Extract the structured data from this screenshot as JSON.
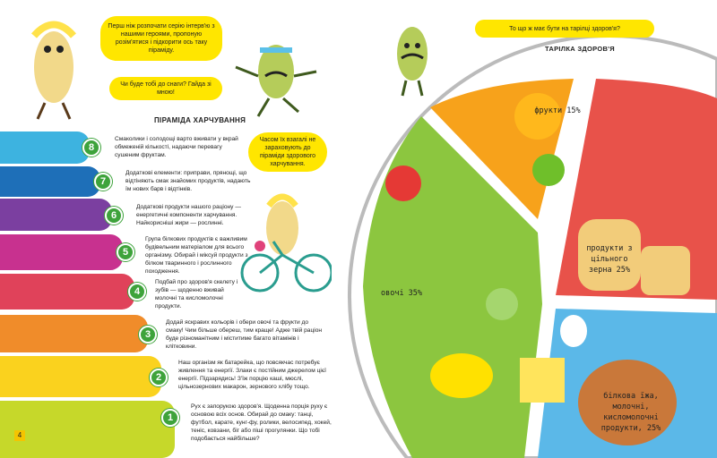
{
  "left_page": {
    "bubble_intro": "Перш ніж розпочати серію інтерв'ю з нашими героями, пропоную розім'ятися і підкорити ось таку піраміду.",
    "bubble_question": "Чи буде тобі до снаги? Гайда зі мною!",
    "pyramid_title": "ПІРАМІДА ХАРЧУВАННЯ",
    "bubble_note": "Часом їх взагалі не зараховують до піраміди здорового харчування.",
    "page_number": "4",
    "levels": [
      {
        "number": "8",
        "color": "#3db3e0",
        "text": "Смаколики і солодощі варто вживати у вкрай обмеженій кількості, надаючи перевагу сушеним фруктам."
      },
      {
        "number": "7",
        "color": "#1e6fb8",
        "text": "Додаткові елементи: приправи, прянощі, що відтіняють смак знайомих продуктів, надають їм нових барв і відтінків."
      },
      {
        "number": "6",
        "color": "#7b3fa0",
        "text": "Додаткові продукти нашого раціону — енергетичні компоненти харчування. Найкорисніші жири — рослинні."
      },
      {
        "number": "5",
        "color": "#c8318f",
        "text": "Група білкових продуктів є важливим будівельним матеріалом для всього організму. Обирай і міксуй продукти з білком тваринного і рослинного походження."
      },
      {
        "number": "4",
        "color": "#e0425a",
        "text": "Подбай про здоров'я скелету і зубів — щоденно вживай молочні та кисломолочні продукти."
      },
      {
        "number": "3",
        "color": "#f08c2a",
        "text": "Додай яскравих кольорів і обери овочі та фрукти до смаку! Чим більше обереш, тим краще! Адже твій раціон буде різноманітним і міститиме багато вітамінів і клітковини."
      },
      {
        "number": "2",
        "color": "#fad21e",
        "text": "Наш організм як батарейка, що повсякчас потребує живлення та енергії. Злаки є постійним джерелом цієї енергії. Підзарядись! З'їж порцію каші, мюслі, цільнозернових макарон, зернового хлібу тощо."
      },
      {
        "number": "1",
        "color": "#c6d82a",
        "text": "Рух є запорукою здоров'я. Щоденна порція руху є основою всіх основ. Обирай до смаку: танці, футбол, карате, кунг-фу, ролики, велосипед, хокей, теніс, ковзани, біг або піші прогулянки. Що тобі подобається найбільше?"
      }
    ]
  },
  "right_page": {
    "bubble": "То що ж має бути на тарілці здоров'я?",
    "plate_title": "ТАРІЛКА ЗДОРОВ'Я",
    "sections": [
      {
        "label": "фрукти 15%",
        "color": "#f7a21b"
      },
      {
        "label": "продукти з цільного зерна 25%",
        "color": "#e8524a"
      },
      {
        "label": "білкова їжа, молочні, кисломолочні продукти, 25%",
        "color": "#5bb8e8"
      },
      {
        "label": "овочі 35%",
        "color": "#8cc63f"
      }
    ]
  }
}
